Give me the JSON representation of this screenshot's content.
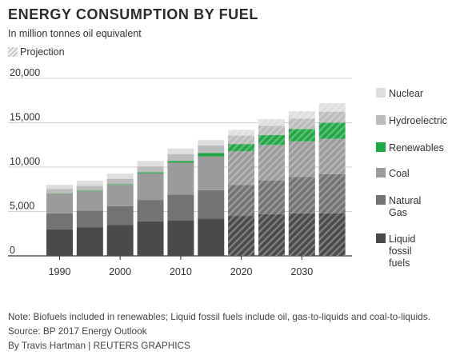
{
  "chart_data": {
    "type": "bar",
    "stacked": true,
    "title": "ENERGY CONSUMPTION BY FUEL",
    "subtitle": "In million tonnes oil equivalent",
    "projection_label": "Projection",
    "projection_from": 2020,
    "x": [
      1990,
      1995,
      2000,
      2005,
      2010,
      2015,
      2020,
      2025,
      2030,
      2035
    ],
    "x_ticks": [
      1990,
      2000,
      2010,
      2020,
      2030
    ],
    "x_tick_labels": [
      "1990",
      "2000",
      "2010",
      "2020",
      "2030"
    ],
    "y_ticks": [
      0,
      5000,
      10000,
      15000,
      20000
    ],
    "y_tick_labels": [
      "0",
      "5,000",
      "10,000",
      "15,000",
      "20,000"
    ],
    "ylim": [
      0,
      20000
    ],
    "grid": true,
    "legend_position": "right",
    "series": [
      {
        "name": "Liquid fossil fuels",
        "legend_lines": [
          "Liquid",
          "fossil",
          "fuels"
        ],
        "color": "#4a4a4a",
        "values": [
          3000,
          3200,
          3500,
          3900,
          4000,
          4200,
          4500,
          4700,
          4800,
          4800
        ]
      },
      {
        "name": "Natural Gas",
        "legend_lines": [
          "Natural",
          "Gas"
        ],
        "color": "#737373",
        "values": [
          1800,
          1900,
          2100,
          2400,
          2900,
          3200,
          3500,
          3800,
          4100,
          4400
        ]
      },
      {
        "name": "Coal",
        "legend_lines": [
          "Coal"
        ],
        "color": "#9b9b9b",
        "values": [
          2200,
          2200,
          2400,
          3000,
          3600,
          3800,
          3800,
          4000,
          4000,
          4000
        ]
      },
      {
        "name": "Renewables",
        "legend_lines": [
          "Renewables"
        ],
        "color": "#22a745",
        "values": [
          50,
          60,
          80,
          130,
          200,
          400,
          800,
          1100,
          1400,
          1800
        ]
      },
      {
        "name": "Hydroelectric",
        "legend_lines": [
          "Hydroelectric"
        ],
        "color": "#bcbcbc",
        "values": [
          500,
          550,
          600,
          650,
          750,
          850,
          950,
          1050,
          1150,
          1250
        ]
      },
      {
        "name": "Nuclear",
        "legend_lines": [
          "Nuclear"
        ],
        "color": "#dedede",
        "values": [
          450,
          550,
          580,
          620,
          640,
          600,
          650,
          750,
          850,
          950
        ]
      }
    ],
    "legend_order": [
      "Nuclear",
      "Hydroelectric",
      "Renewables",
      "Coal",
      "Natural Gas",
      "Liquid fossil fuels"
    ]
  },
  "footer": {
    "note": "Note: Biofuels included in renewables; Liquid fossil fuels include oil, gas-to-liquids and coal-to-liquids.",
    "source": "Source: BP 2017 Energy Outlook",
    "credit": "By Travis Hartman | REUTERS GRAPHICS"
  }
}
